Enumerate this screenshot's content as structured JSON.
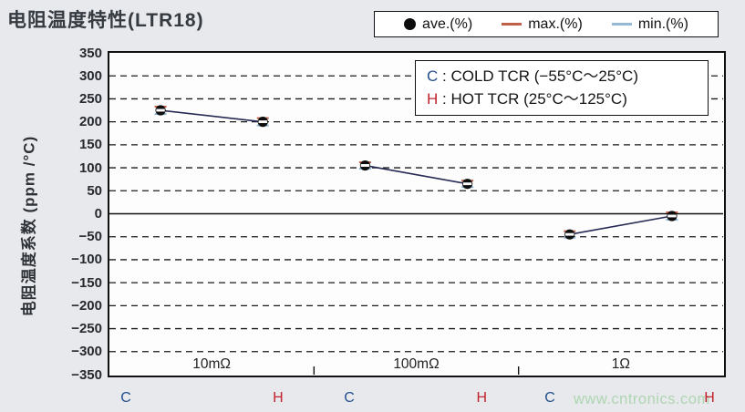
{
  "page": {
    "watermark": "www.cntronics.com"
  },
  "title": "电阻温度特性(LTR18)",
  "colors": {
    "background": "#e7e9ec",
    "cold": "#24508f",
    "hot": "#c2232e",
    "ave": "#0d0d0d",
    "max": "#c0604a",
    "min": "#93b9d9",
    "series_line": "#262a54",
    "grid": "#1b1b1b",
    "watermark": "#afd5b3"
  },
  "legend": {
    "items": [
      {
        "label": "ave.(%)",
        "marker": "circle",
        "color": "#0d0d0d"
      },
      {
        "label": "max.(%)",
        "marker": "line",
        "color": "#c0604a"
      },
      {
        "label": "min.(%)",
        "marker": "line",
        "color": "#93b9d9"
      }
    ]
  },
  "annotation": {
    "rows": [
      {
        "key": "C",
        "text": ": COLD TCR (−55°C〜25°C)"
      },
      {
        "key": "H",
        "text": ": HOT TCR (25°C〜125°C)"
      }
    ]
  },
  "y_axis": {
    "title": "电阻温度系数 (ppm /°C)"
  },
  "x_sub_labels": [
    "C",
    "H",
    "C",
    "H",
    "C",
    "H"
  ],
  "chart_data": {
    "type": "line",
    "title": "电阻温度特性(LTR18)",
    "ylabel": "电阻温度系数 (ppm/°C)",
    "ylim": [
      -350,
      350
    ],
    "ytick_step": 50,
    "grid": "horizontal-dashed",
    "legend_position": "top",
    "categories": [
      "10mΩ",
      "100mΩ",
      "1Ω"
    ],
    "x_points": [
      "C",
      "H",
      "C",
      "H",
      "C",
      "H"
    ],
    "series": [
      {
        "name": "ave.(%)",
        "values": [
          225,
          200,
          105,
          65,
          -45,
          -5
        ]
      },
      {
        "name": "max.(%)",
        "values": [
          233,
          208,
          112,
          72,
          -38,
          3
        ]
      },
      {
        "name": "min.(%)",
        "values": [
          217,
          192,
          98,
          58,
          -52,
          -13
        ]
      }
    ],
    "segments": [
      [
        0,
        1
      ],
      [
        2,
        3
      ],
      [
        4,
        5
      ]
    ]
  }
}
